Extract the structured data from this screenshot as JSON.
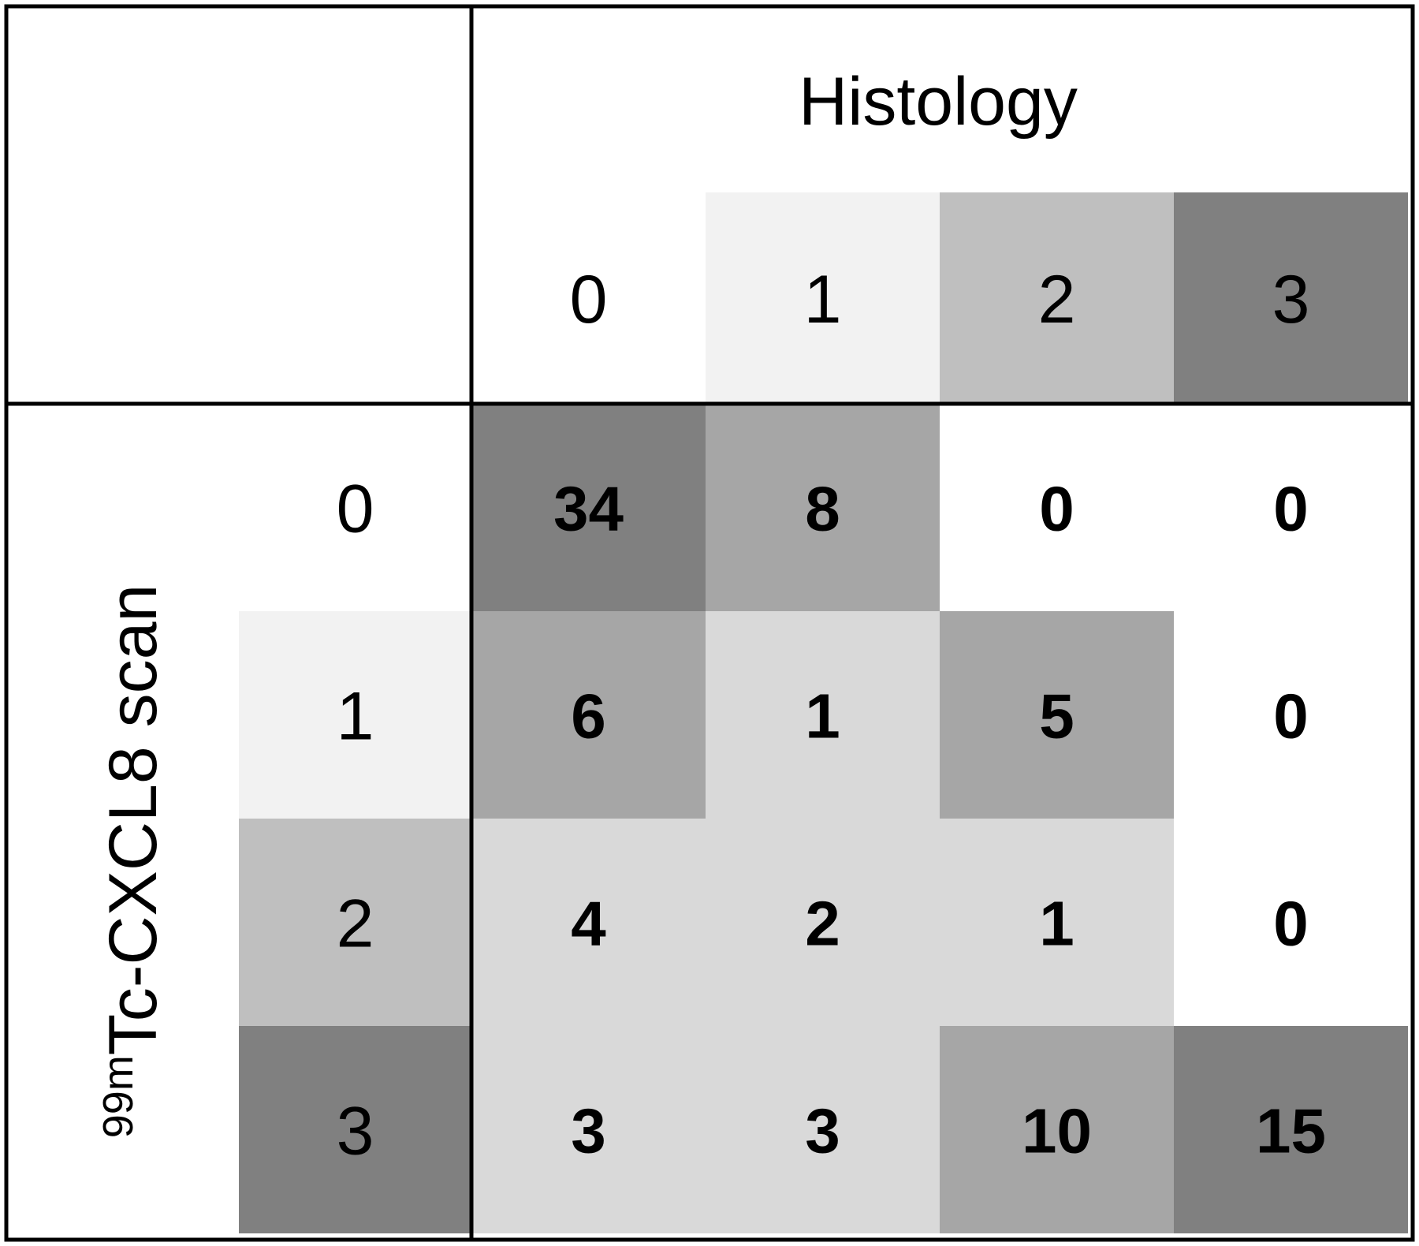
{
  "chart_data": {
    "type": "heatmap",
    "title": "",
    "xlabel": "Histology",
    "ylabel": {
      "superscript": "99m",
      "text": "Tc-CXCL8 scan"
    },
    "x_categories": [
      "0",
      "1",
      "2",
      "3"
    ],
    "y_categories": [
      "0",
      "1",
      "2",
      "3"
    ],
    "values": [
      [
        34,
        8,
        0,
        0
      ],
      [
        6,
        1,
        5,
        0
      ],
      [
        4,
        2,
        1,
        0
      ],
      [
        3,
        3,
        10,
        15
      ]
    ],
    "header_shades": [
      "#ffffff",
      "#f2f2f2",
      "#bfbfbf",
      "#808080"
    ],
    "cell_shades": [
      [
        "#808080",
        "#a6a6a6",
        "#ffffff",
        "#ffffff"
      ],
      [
        "#a6a6a6",
        "#d9d9d9",
        "#a6a6a6",
        "#ffffff"
      ],
      [
        "#d9d9d9",
        "#d9d9d9",
        "#d9d9d9",
        "#ffffff"
      ],
      [
        "#d9d9d9",
        "#d9d9d9",
        "#a6a6a6",
        "#808080"
      ]
    ],
    "border_color": "#000000",
    "grid": false,
    "legend": "none"
  }
}
